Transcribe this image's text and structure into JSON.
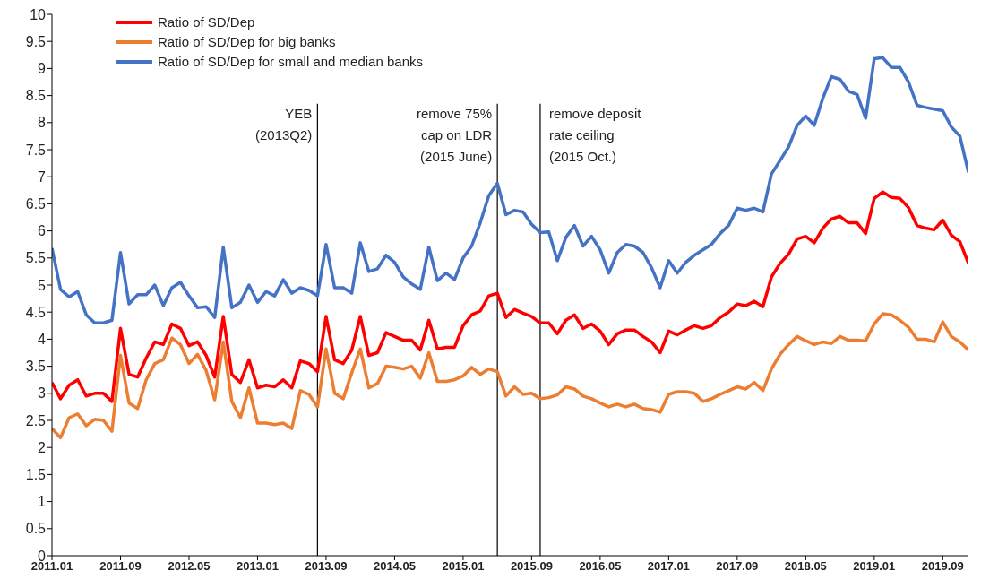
{
  "chart_data": {
    "type": "line",
    "x": [
      "2011-01",
      "2011-02",
      "2011-03",
      "2011-04",
      "2011-05",
      "2011-06",
      "2011-07",
      "2011-08",
      "2011-09",
      "2011-10",
      "2011-11",
      "2011-12",
      "2012-01",
      "2012-02",
      "2012-03",
      "2012-04",
      "2012-05",
      "2012-06",
      "2012-07",
      "2012-08",
      "2012-09",
      "2012-10",
      "2012-11",
      "2012-12",
      "2013-01",
      "2013-02",
      "2013-03",
      "2013-04",
      "2013-05",
      "2013-06",
      "2013-07",
      "2013-08",
      "2013-09",
      "2013-10",
      "2013-11",
      "2013-12",
      "2014-01",
      "2014-02",
      "2014-03",
      "2014-04",
      "2014-05",
      "2014-06",
      "2014-07",
      "2014-08",
      "2014-09",
      "2014-10",
      "2014-11",
      "2014-12",
      "2015-01",
      "2015-02",
      "2015-03",
      "2015-04",
      "2015-05",
      "2015-06",
      "2015-07",
      "2015-08",
      "2015-09",
      "2015-10",
      "2015-11",
      "2015-12",
      "2016-01",
      "2016-02",
      "2016-03",
      "2016-04",
      "2016-05",
      "2016-06",
      "2016-07",
      "2016-08",
      "2016-09",
      "2016-10",
      "2016-11",
      "2016-12",
      "2017-01",
      "2017-02",
      "2017-03",
      "2017-04",
      "2017-05",
      "2017-06",
      "2017-07",
      "2017-08",
      "2017-09",
      "2017-10",
      "2017-11",
      "2017-12",
      "2018-01",
      "2018-02",
      "2018-03",
      "2018-04",
      "2018-05",
      "2018-06",
      "2018-07",
      "2018-08",
      "2018-09",
      "2018-10",
      "2018-11",
      "2018-12",
      "2019-01",
      "2019-02",
      "2019-03",
      "2019-04",
      "2019-05",
      "2019-06",
      "2019-07",
      "2019-08",
      "2019-09",
      "2019-10",
      "2019-11",
      "2019-12"
    ],
    "series": [
      {
        "name": "Ratio of SD/Dep",
        "color": "#ff0000",
        "values": [
          3.2,
          2.9,
          3.15,
          3.25,
          2.95,
          3.0,
          3.0,
          2.85,
          4.2,
          3.35,
          3.3,
          3.65,
          3.95,
          3.9,
          4.28,
          4.2,
          3.88,
          3.95,
          3.7,
          3.3,
          4.42,
          3.35,
          3.2,
          3.62,
          3.1,
          3.15,
          3.12,
          3.25,
          3.1,
          3.6,
          3.55,
          3.4,
          4.42,
          3.62,
          3.55,
          3.8,
          4.42,
          3.7,
          3.75,
          4.12,
          4.05,
          3.98,
          3.98,
          3.8,
          4.35,
          3.82,
          3.85,
          3.85,
          4.25,
          4.45,
          4.52,
          4.8,
          4.85,
          4.4,
          4.55,
          4.48,
          4.42,
          4.3,
          4.3,
          4.1,
          4.35,
          4.45,
          4.2,
          4.28,
          4.15,
          3.9,
          4.1,
          4.17,
          4.17,
          4.05,
          3.95,
          3.75,
          4.15,
          4.08,
          4.17,
          4.25,
          4.2,
          4.25,
          4.4,
          4.5,
          4.65,
          4.62,
          4.7,
          4.6,
          5.15,
          5.4,
          5.57,
          5.85,
          5.9,
          5.78,
          6.05,
          6.22,
          6.27,
          6.15,
          6.15,
          5.95,
          6.6,
          6.72,
          6.62,
          6.6,
          6.43,
          6.1,
          6.05,
          6.02,
          6.2,
          5.92,
          5.8,
          5.4
        ]
      },
      {
        "name": "Ratio of SD/Dep for big banks",
        "color": "#ed7d31",
        "values": [
          2.35,
          2.18,
          2.55,
          2.62,
          2.4,
          2.52,
          2.5,
          2.3,
          3.7,
          2.82,
          2.72,
          3.25,
          3.55,
          3.62,
          4.02,
          3.9,
          3.55,
          3.72,
          3.42,
          2.88,
          3.95,
          2.85,
          2.55,
          3.1,
          2.45,
          2.45,
          2.42,
          2.45,
          2.35,
          3.05,
          2.98,
          2.75,
          3.82,
          3.0,
          2.9,
          3.38,
          3.82,
          3.1,
          3.18,
          3.5,
          3.48,
          3.45,
          3.5,
          3.28,
          3.75,
          3.22,
          3.22,
          3.25,
          3.32,
          3.48,
          3.35,
          3.45,
          3.4,
          2.95,
          3.12,
          2.98,
          3.0,
          2.9,
          2.92,
          2.97,
          3.12,
          3.08,
          2.95,
          2.9,
          2.82,
          2.75,
          2.8,
          2.75,
          2.8,
          2.72,
          2.7,
          2.65,
          2.98,
          3.03,
          3.03,
          3.0,
          2.85,
          2.9,
          2.98,
          3.05,
          3.12,
          3.08,
          3.2,
          3.05,
          3.45,
          3.72,
          3.9,
          4.05,
          3.97,
          3.9,
          3.95,
          3.92,
          4.05,
          3.98,
          3.98,
          3.97,
          4.28,
          4.47,
          4.45,
          4.35,
          4.22,
          4.0,
          4.0,
          3.95,
          4.32,
          4.05,
          3.95,
          3.8
        ]
      },
      {
        "name": "Ratio of SD/Dep for small and median banks",
        "color": "#4472c4",
        "values": [
          5.68,
          4.92,
          4.78,
          4.88,
          4.45,
          4.3,
          4.3,
          4.35,
          5.6,
          4.65,
          4.82,
          4.82,
          5.0,
          4.62,
          4.95,
          5.05,
          4.8,
          4.58,
          4.6,
          4.4,
          5.7,
          4.58,
          4.68,
          5.0,
          4.68,
          4.88,
          4.8,
          5.1,
          4.85,
          4.95,
          4.9,
          4.8,
          5.75,
          4.95,
          4.95,
          4.85,
          5.78,
          5.25,
          5.3,
          5.55,
          5.42,
          5.15,
          5.02,
          4.92,
          5.7,
          5.08,
          5.22,
          5.1,
          5.5,
          5.72,
          6.15,
          6.65,
          6.88,
          6.3,
          6.38,
          6.35,
          6.12,
          5.97,
          5.98,
          5.45,
          5.88,
          6.1,
          5.72,
          5.9,
          5.65,
          5.22,
          5.6,
          5.75,
          5.72,
          5.6,
          5.32,
          4.95,
          5.45,
          5.22,
          5.42,
          5.55,
          5.65,
          5.75,
          5.95,
          6.1,
          6.42,
          6.38,
          6.42,
          6.35,
          7.05,
          7.3,
          7.55,
          7.95,
          8.12,
          7.95,
          8.45,
          8.85,
          8.8,
          8.58,
          8.52,
          8.08,
          9.18,
          9.2,
          9.02,
          9.02,
          8.75,
          8.32,
          8.28,
          8.25,
          8.22,
          7.92,
          7.75,
          7.08
        ]
      }
    ],
    "xlim": [
      "2011-01",
      "2019-12"
    ],
    "xticks": [
      {
        "value": "2011-01",
        "label": "2011.01"
      },
      {
        "value": "2011-09",
        "label": "2011.09"
      },
      {
        "value": "2012-05",
        "label": "2012.05"
      },
      {
        "value": "2013-01",
        "label": "2013.01"
      },
      {
        "value": "2013-09",
        "label": "2013.09"
      },
      {
        "value": "2014-05",
        "label": "2014.05"
      },
      {
        "value": "2015-01",
        "label": "2015.01"
      },
      {
        "value": "2015-09",
        "label": "2015.09"
      },
      {
        "value": "2016-05",
        "label": "2016.05"
      },
      {
        "value": "2017-01",
        "label": "2017.01"
      },
      {
        "value": "2017-09",
        "label": "2017.09"
      },
      {
        "value": "2018-05",
        "label": "2018.05"
      },
      {
        "value": "2019-01",
        "label": "2019.01"
      },
      {
        "value": "2019-09",
        "label": "2019.09"
      }
    ],
    "ylim": [
      0,
      10
    ],
    "yticks": [
      0,
      0.5,
      1,
      1.5,
      2,
      2.5,
      3,
      3.5,
      4,
      4.5,
      5,
      5.5,
      6,
      6.5,
      7,
      7.5,
      8,
      8.5,
      9,
      9.5,
      10
    ],
    "ref_lines": [
      {
        "axis": "x",
        "value": "2013-08",
        "label": "YEB\n(2013Q2)",
        "color": "#000000"
      },
      {
        "axis": "x",
        "value": "2015-05",
        "label": "remove 75%\ncap on LDR\n(2015 June)",
        "color": "#000000"
      },
      {
        "axis": "x",
        "value": "2015-10",
        "label": "remove deposit\nrate ceiling\n(2015 Oct.)",
        "color": "#000000"
      }
    ],
    "grid": false,
    "legend": "top left",
    "marker": "none",
    "line_style": "solid"
  }
}
